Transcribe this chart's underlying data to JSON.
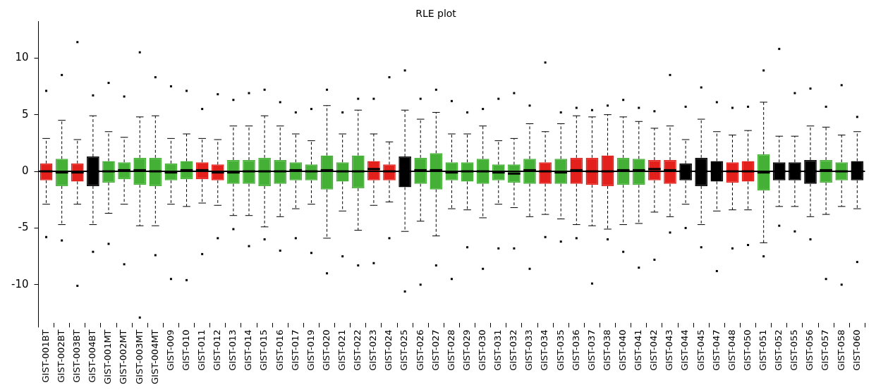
{
  "chart_data": {
    "type": "box",
    "title": "RLE plot",
    "categories": [
      "GIST-001BT",
      "GIST-002BT",
      "GIST-003BT",
      "GIST-004BT",
      "GIST-001MT",
      "GIST-002MT",
      "GIST-003MT",
      "GIST-004MT",
      "GIST-009",
      "GIST-010",
      "GIST-011",
      "GIST-012",
      "GIST-013",
      "GIST-014",
      "GIST-015",
      "GIST-016",
      "GIST-017",
      "GIST-019",
      "GIST-020",
      "GIST-021",
      "GIST-022",
      "GIST-023",
      "GIST-024",
      "GIST-025",
      "GIST-026",
      "GIST-027",
      "GIST-028",
      "GIST-029",
      "GIST-030",
      "GIST-031",
      "GIST-032",
      "GIST-033",
      "GIST-034",
      "GIST-035",
      "GIST-036",
      "GIST-037",
      "GIST-038",
      "GIST-040",
      "GIST-041",
      "GIST-042",
      "GIST-043",
      "GIST-044",
      "GIST-045",
      "GIST-047",
      "GIST-048",
      "GIST-050",
      "GIST-051",
      "GIST-052",
      "GIST-055",
      "GIST-056",
      "GIST-057",
      "GIST-058",
      "GIST-060"
    ],
    "colors": [
      "#e3201b",
      "#44b035",
      "#e3201b",
      "#000000",
      "#44b035",
      "#44b035",
      "#44b035",
      "#44b035",
      "#44b035",
      "#44b035",
      "#e3201b",
      "#e3201b",
      "#44b035",
      "#44b035",
      "#44b035",
      "#44b035",
      "#44b035",
      "#44b035",
      "#44b035",
      "#44b035",
      "#44b035",
      "#e3201b",
      "#e3201b",
      "#000000",
      "#44b035",
      "#44b035",
      "#44b035",
      "#44b035",
      "#44b035",
      "#44b035",
      "#44b035",
      "#44b035",
      "#e3201b",
      "#44b035",
      "#e3201b",
      "#e3201b",
      "#e3201b",
      "#44b035",
      "#44b035",
      "#e3201b",
      "#e3201b",
      "#000000",
      "#000000",
      "#000000",
      "#e3201b",
      "#e3201b",
      "#44b035",
      "#000000",
      "#000000",
      "#000000",
      "#44b035",
      "#44b035",
      "#000000"
    ],
    "boxes": [
      {
        "low": -2.9,
        "q1": -0.8,
        "median": 0,
        "q3": 0.7,
        "high": 2.9,
        "outliers": [
          7.1,
          -5.8
        ]
      },
      {
        "low": -4.7,
        "q1": -1.3,
        "median": -0.1,
        "q3": 1.1,
        "high": 4.5,
        "outliers": [
          8.5,
          -6.1
        ]
      },
      {
        "low": -2.9,
        "q1": -0.9,
        "median": -0.1,
        "q3": 0.7,
        "high": 2.8,
        "outliers": [
          11.4,
          -10.1
        ]
      },
      {
        "low": -4.7,
        "q1": -1.3,
        "median": 0,
        "q3": 1.3,
        "high": 4.9,
        "outliers": [
          6.7,
          -7.1
        ]
      },
      {
        "low": -3.7,
        "q1": -1,
        "median": 0,
        "q3": 0.9,
        "high": 3.5,
        "outliers": [
          7.8,
          -6.4
        ]
      },
      {
        "low": -2.9,
        "q1": -0.7,
        "median": 0.1,
        "q3": 0.8,
        "high": 3,
        "outliers": [
          6.6,
          -8.2
        ]
      },
      {
        "low": -4.8,
        "q1": -1.2,
        "median": 0.1,
        "q3": 1.2,
        "high": 4.8,
        "outliers": [
          10.5,
          -12.9
        ]
      },
      {
        "low": -4.8,
        "q1": -1.3,
        "median": 0,
        "q3": 1.2,
        "high": 4.9,
        "outliers": [
          8.3,
          -7.4
        ]
      },
      {
        "low": -2.9,
        "q1": -0.8,
        "median": -0.1,
        "q3": 0.7,
        "high": 2.9,
        "outliers": [
          7.5,
          -9.5
        ]
      },
      {
        "low": -3.1,
        "q1": -0.7,
        "median": 0.1,
        "q3": 0.9,
        "high": 3.3,
        "outliers": [
          7.1,
          -9.6
        ]
      },
      {
        "low": -2.8,
        "q1": -0.7,
        "median": 0.1,
        "q3": 0.8,
        "high": 2.9,
        "outliers": [
          5.5,
          -7.3
        ]
      },
      {
        "low": -3,
        "q1": -0.8,
        "median": -0.1,
        "q3": 0.6,
        "high": 2.8,
        "outliers": [
          6.8,
          -5.9
        ]
      },
      {
        "low": -3.9,
        "q1": -1.1,
        "median": -0.1,
        "q3": 1,
        "high": 4,
        "outliers": [
          6.3,
          -5.1
        ]
      },
      {
        "low": -3.9,
        "q1": -1.1,
        "median": 0,
        "q3": 1,
        "high": 4,
        "outliers": [
          6.9,
          -6.6
        ]
      },
      {
        "low": -4.9,
        "q1": -1.3,
        "median": 0,
        "q3": 1.2,
        "high": 4.9,
        "outliers": [
          7.2,
          -6
        ]
      },
      {
        "low": -4,
        "q1": -1.1,
        "median": 0,
        "q3": 1,
        "high": 4,
        "outliers": [
          6.1,
          -7
        ]
      },
      {
        "low": -3.3,
        "q1": -0.8,
        "median": 0.1,
        "q3": 0.8,
        "high": 3.3,
        "outliers": [
          5.2,
          -5.9
        ]
      },
      {
        "low": -2.9,
        "q1": -0.8,
        "median": 0,
        "q3": 0.6,
        "high": 2.7,
        "outliers": [
          5.5,
          -7.2
        ]
      },
      {
        "low": -5.9,
        "q1": -1.6,
        "median": 0.1,
        "q3": 1.4,
        "high": 5.8,
        "outliers": [
          7.2,
          -9
        ]
      },
      {
        "low": -3.5,
        "q1": -0.9,
        "median": 0,
        "q3": 0.8,
        "high": 3.3,
        "outliers": [
          5.2,
          -7.5
        ]
      },
      {
        "low": -5.2,
        "q1": -1.5,
        "median": 0,
        "q3": 1.4,
        "high": 5.4,
        "outliers": [
          6.4,
          -8.3
        ]
      },
      {
        "low": -3,
        "q1": -0.8,
        "median": 0.2,
        "q3": 0.9,
        "high": 3.3,
        "outliers": [
          6.4,
          -8.1
        ]
      },
      {
        "low": -2.7,
        "q1": -0.8,
        "median": 0,
        "q3": 0.6,
        "high": 2.6,
        "outliers": [
          8.3,
          -5.9
        ]
      },
      {
        "low": -5.3,
        "q1": -1.4,
        "median": 0,
        "q3": 1.3,
        "high": 5.4,
        "outliers": [
          8.9,
          -10.6
        ]
      },
      {
        "low": -4.4,
        "q1": -1.1,
        "median": 0.1,
        "q3": 1.2,
        "high": 4.6,
        "outliers": [
          6.4,
          -10
        ]
      },
      {
        "low": -5.7,
        "q1": -1.6,
        "median": 0.1,
        "q3": 1.6,
        "high": 5.2,
        "outliers": [
          7.2,
          -8.3
        ]
      },
      {
        "low": -3.3,
        "q1": -0.8,
        "median": -0.1,
        "q3": 0.8,
        "high": 3.3,
        "outliers": [
          6.2,
          -9.5
        ]
      },
      {
        "low": -3.4,
        "q1": -0.9,
        "median": 0,
        "q3": 0.8,
        "high": 3.3,
        "outliers": [
          5.2,
          -6.7
        ]
      },
      {
        "low": -4.1,
        "q1": -1.1,
        "median": 0,
        "q3": 1.1,
        "high": 4,
        "outliers": [
          5.5,
          -8.6
        ]
      },
      {
        "low": -2.9,
        "q1": -0.8,
        "median": -0.1,
        "q3": 0.6,
        "high": 2.7,
        "outliers": [
          6.4,
          -6.8
        ]
      },
      {
        "low": -3.2,
        "q1": -1,
        "median": -0.2,
        "q3": 0.6,
        "high": 2.9,
        "outliers": [
          6.9,
          -6.8
        ]
      },
      {
        "low": -4,
        "q1": -1.1,
        "median": 0.1,
        "q3": 1.1,
        "high": 4.2,
        "outliers": [
          5.8,
          -8.6
        ]
      },
      {
        "low": -3.8,
        "q1": -1.1,
        "median": 0,
        "q3": 0.8,
        "high": 3.5,
        "outliers": [
          9.6,
          -5.8
        ]
      },
      {
        "low": -4.2,
        "q1": -1.1,
        "median": -0.1,
        "q3": 1.1,
        "high": 4.2,
        "outliers": [
          5.2,
          -6.2
        ]
      },
      {
        "low": -4.7,
        "q1": -1.1,
        "median": 0.1,
        "q3": 1.2,
        "high": 4.9,
        "outliers": [
          5.6,
          -5.9
        ]
      },
      {
        "low": -4.8,
        "q1": -1.2,
        "median": 0,
        "q3": 1.2,
        "high": 4.8,
        "outliers": [
          5.4,
          -9.9
        ]
      },
      {
        "low": -5.1,
        "q1": -1.3,
        "median": 0,
        "q3": 1.4,
        "high": 5,
        "outliers": [
          5.8,
          -6
        ]
      },
      {
        "low": -4.7,
        "q1": -1.2,
        "median": 0.1,
        "q3": 1.2,
        "high": 4.8,
        "outliers": [
          6.3,
          -7.1
        ]
      },
      {
        "low": -4.6,
        "q1": -1.2,
        "median": 0.1,
        "q3": 1.1,
        "high": 4.4,
        "outliers": [
          5.6,
          -8.5
        ]
      },
      {
        "low": -3.6,
        "q1": -0.8,
        "median": 0.2,
        "q3": 1,
        "high": 3.8,
        "outliers": [
          5.3,
          -7.8
        ]
      },
      {
        "low": -4,
        "q1": -1.1,
        "median": 0.1,
        "q3": 1,
        "high": 4,
        "outliers": [
          8.5,
          -5.4
        ]
      },
      {
        "low": -2.9,
        "q1": -0.8,
        "median": 0,
        "q3": 0.7,
        "high": 2.8,
        "outliers": [
          5.7,
          -5
        ]
      },
      {
        "low": -4.7,
        "q1": -1.3,
        "median": 0,
        "q3": 1.2,
        "high": 4.6,
        "outliers": [
          7.4,
          -6.7
        ]
      },
      {
        "low": -3.5,
        "q1": -0.9,
        "median": 0,
        "q3": 0.9,
        "high": 3.5,
        "outliers": [
          6.1,
          -8.8
        ]
      },
      {
        "low": -3.4,
        "q1": -1,
        "median": 0,
        "q3": 0.8,
        "high": 3.2,
        "outliers": [
          5.6,
          -6.8
        ]
      },
      {
        "low": -3.4,
        "q1": -0.9,
        "median": 0,
        "q3": 0.9,
        "high": 3.6,
        "outliers": [
          5.7,
          -6.5
        ]
      },
      {
        "low": -6.3,
        "q1": -1.7,
        "median": -0.1,
        "q3": 1.5,
        "high": 6.1,
        "outliers": [
          8.9,
          -7.5
        ]
      },
      {
        "low": -3.1,
        "q1": -0.8,
        "median": 0,
        "q3": 0.8,
        "high": 3.1,
        "outliers": [
          10.8,
          -4.8
        ]
      },
      {
        "low": -3.1,
        "q1": -0.8,
        "median": 0,
        "q3": 0.8,
        "high": 3.1,
        "outliers": [
          6.9,
          -5.3
        ]
      },
      {
        "low": -4,
        "q1": -1.1,
        "median": 0,
        "q3": 1,
        "high": 4,
        "outliers": [
          7.3,
          -6
        ]
      },
      {
        "low": -3.8,
        "q1": -1,
        "median": 0.1,
        "q3": 1,
        "high": 3.9,
        "outliers": [
          5.7,
          -9.5
        ]
      },
      {
        "low": -3.1,
        "q1": -0.8,
        "median": 0,
        "q3": 0.8,
        "high": 3.2,
        "outliers": [
          7.6,
          -10
        ]
      },
      {
        "low": -3.3,
        "q1": -0.8,
        "median": 0,
        "q3": 0.9,
        "high": 3.5,
        "outliers": [
          4.8,
          -8
        ]
      }
    ],
    "ylim": [
      -13.4,
      13.2
    ],
    "yticks": [
      -10,
      -5,
      0,
      5,
      10
    ],
    "ref_lines": [
      {
        "axis": "y",
        "value": 0,
        "color": "#000000"
      }
    ]
  }
}
